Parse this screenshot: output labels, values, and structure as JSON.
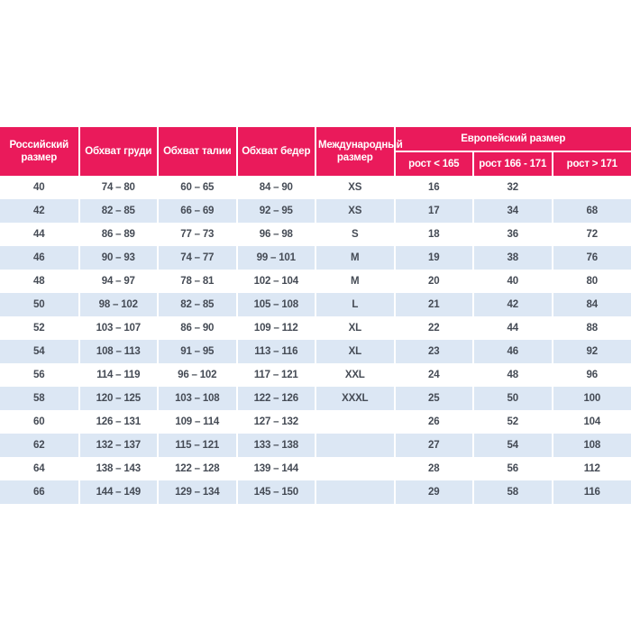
{
  "colors": {
    "header_bg": "#EA1A5B",
    "header_text": "#FFFFFF",
    "stripe_bg": "#DCE7F4",
    "row_bg": "#FFFFFF",
    "cell_text": "#454B55"
  },
  "chart_data": {
    "type": "table",
    "header": {
      "russian_size": "Российский размер",
      "chest": "Обхват груди",
      "waist": "Обхват талии",
      "hips": "Обхват бедер",
      "international_size": "Международный размер",
      "european_size": "Европейский размер",
      "height_lt_165": "рост < 165",
      "height_166_171": "рост 166 - 171",
      "height_gt_171": "рост > 171"
    },
    "rows": [
      [
        "40",
        "74 – 80",
        "60 – 65",
        "84 – 90",
        "XS",
        "16",
        "32",
        ""
      ],
      [
        "42",
        "82 – 85",
        "66 – 69",
        "92 – 95",
        "XS",
        "17",
        "34",
        "68"
      ],
      [
        "44",
        "86 – 89",
        "77 – 73",
        "96 – 98",
        "S",
        "18",
        "36",
        "72"
      ],
      [
        "46",
        "90 – 93",
        "74 – 77",
        "99 – 101",
        "M",
        "19",
        "38",
        "76"
      ],
      [
        "48",
        "94 – 97",
        "78 – 81",
        "102 – 104",
        "M",
        "20",
        "40",
        "80"
      ],
      [
        "50",
        "98 – 102",
        "82 – 85",
        "105 – 108",
        "L",
        "21",
        "42",
        "84"
      ],
      [
        "52",
        "103 – 107",
        "86 – 90",
        "109 – 112",
        "XL",
        "22",
        "44",
        "88"
      ],
      [
        "54",
        "108 – 113",
        "91 – 95",
        "113 – 116",
        "XL",
        "23",
        "46",
        "92"
      ],
      [
        "56",
        "114 – 119",
        "96 – 102",
        "117 – 121",
        "XXL",
        "24",
        "48",
        "96"
      ],
      [
        "58",
        "120 – 125",
        "103 – 108",
        "122 – 126",
        "XXXL",
        "25",
        "50",
        "100"
      ],
      [
        "60",
        "126 – 131",
        "109 – 114",
        "127 – 132",
        "",
        "26",
        "52",
        "104"
      ],
      [
        "62",
        "132 – 137",
        "115 – 121",
        "133 – 138",
        "",
        "27",
        "54",
        "108"
      ],
      [
        "64",
        "138 – 143",
        "122 – 128",
        "139 – 144",
        "",
        "28",
        "56",
        "112"
      ],
      [
        "66",
        "144 – 149",
        "129 – 134",
        "145 – 150",
        "",
        "29",
        "58",
        "116"
      ]
    ]
  }
}
